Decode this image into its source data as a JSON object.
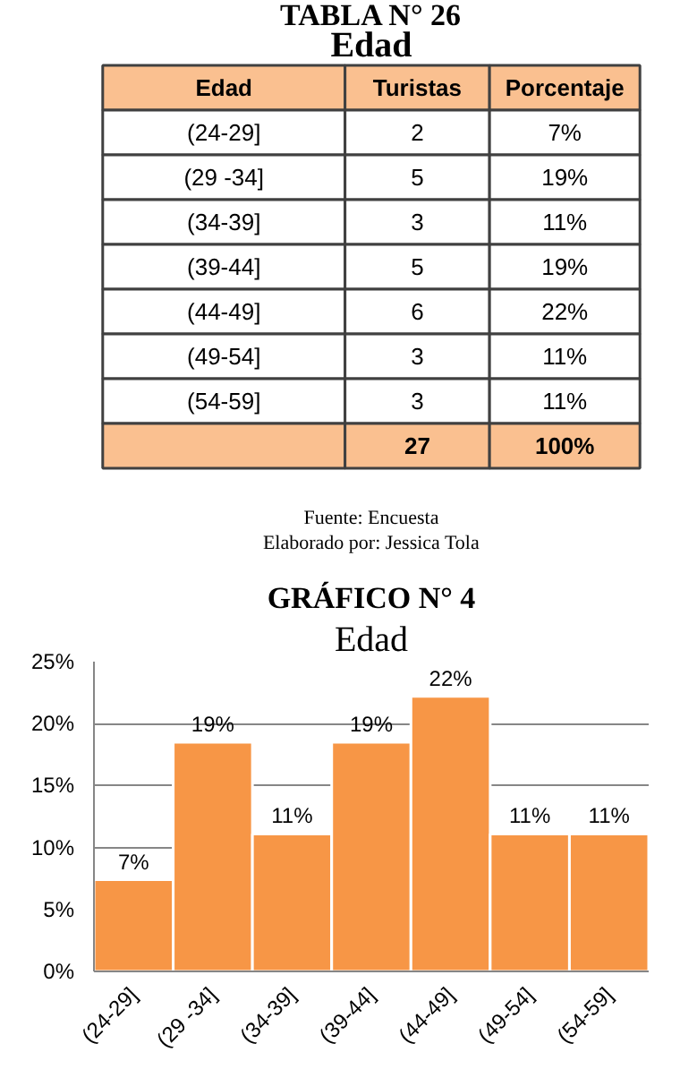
{
  "chart_data": [
    {
      "type": "other",
      "title": "TABLA N° 26",
      "subtitle": "Edad",
      "xlabel": "Edad",
      "categories": [
        "(24-29]",
        "(29 -34]",
        "(34-39]",
        "(39-44]",
        "(44-49]",
        "(49-54]",
        "(54-59]"
      ],
      "series": [
        {
          "name": "Turistas",
          "values": [
            2,
            5,
            3,
            5,
            6,
            3,
            3
          ]
        },
        {
          "name": "Porcentaje",
          "values": [
            7,
            19,
            11,
            19,
            22,
            11,
            11
          ],
          "value_labels": [
            "7%",
            "19%",
            "11%",
            "19%",
            "22%",
            "11%",
            "11%"
          ]
        }
      ],
      "totals": [
        "27",
        "100%"
      ],
      "data_labels": true,
      "annotations": [
        "Fuente: Encuesta",
        "Elaborado por: Jessica Tola"
      ]
    },
    {
      "type": "bar",
      "title": "GRÁFICO N° 4",
      "subtitle": "Edad",
      "categories": [
        "(24-29]",
        "(29 -34]",
        "(34-39]",
        "(39-44]",
        "(44-49]",
        "(49-54]",
        "(54-59]"
      ],
      "values": [
        7.4,
        18.5,
        11.1,
        18.5,
        22.2,
        11.1,
        11.1
      ],
      "value_labels": [
        "7%",
        "19%",
        "11%",
        "19%",
        "22%",
        "11%",
        "11%"
      ],
      "color": "#f79646",
      "ylim": [
        0,
        25
      ],
      "yticks": [
        {
          "value": 0,
          "label": "0%"
        },
        {
          "value": 5,
          "label": "5%"
        },
        {
          "value": 10,
          "label": "10%"
        },
        {
          "value": 15,
          "label": "15%"
        },
        {
          "value": 20,
          "label": "20%"
        },
        {
          "value": 25,
          "label": "25%"
        }
      ],
      "grid": "y"
    }
  ]
}
